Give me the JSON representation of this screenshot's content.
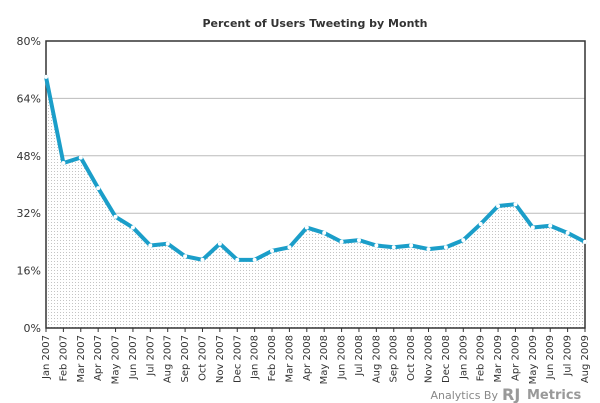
{
  "chart_data": {
    "type": "line",
    "title": "Percent of Users Tweeting by Month",
    "xlabel": "",
    "ylabel": "",
    "ylim": [
      0,
      80
    ],
    "yticks": [
      "0%",
      "16%",
      "32%",
      "48%",
      "64%",
      "80%"
    ],
    "ytick_values": [
      0,
      16,
      32,
      48,
      64,
      80
    ],
    "grid": true,
    "categories": [
      "Jan 2007",
      "Feb 2007",
      "Mar 2007",
      "Apr 2007",
      "May 2007",
      "Jun 2007",
      "Jul 2007",
      "Aug 2007",
      "Sep 2007",
      "Oct 2007",
      "Nov 2007",
      "Dec 2007",
      "Jan 2008",
      "Feb 2008",
      "Mar 2008",
      "Apr 2008",
      "May 2008",
      "Jun 2008",
      "Jul 2008",
      "Aug 2008",
      "Sep 2008",
      "Oct 2008",
      "Nov 2008",
      "Dec 2008",
      "Jan 2009",
      "Feb 2009",
      "Mar 2009",
      "Apr 2009",
      "May 2009",
      "Jun 2009",
      "Jul 2009",
      "Aug 2009"
    ],
    "series": [
      {
        "values": [
          70,
          46,
          47.5,
          39,
          31,
          28,
          23,
          23.5,
          20,
          19,
          23.5,
          19,
          19,
          21.5,
          22.5,
          28,
          26.5,
          24,
          24.5,
          23,
          22.5,
          23,
          22,
          22.5,
          24.5,
          29,
          34,
          34.5,
          28,
          28.5,
          26.5,
          24
        ],
        "color": "#1b9ec9"
      }
    ]
  },
  "credit": {
    "prefix": "Analytics By",
    "brand_rj": "RJ",
    "brand_metrics": "Metrics"
  }
}
